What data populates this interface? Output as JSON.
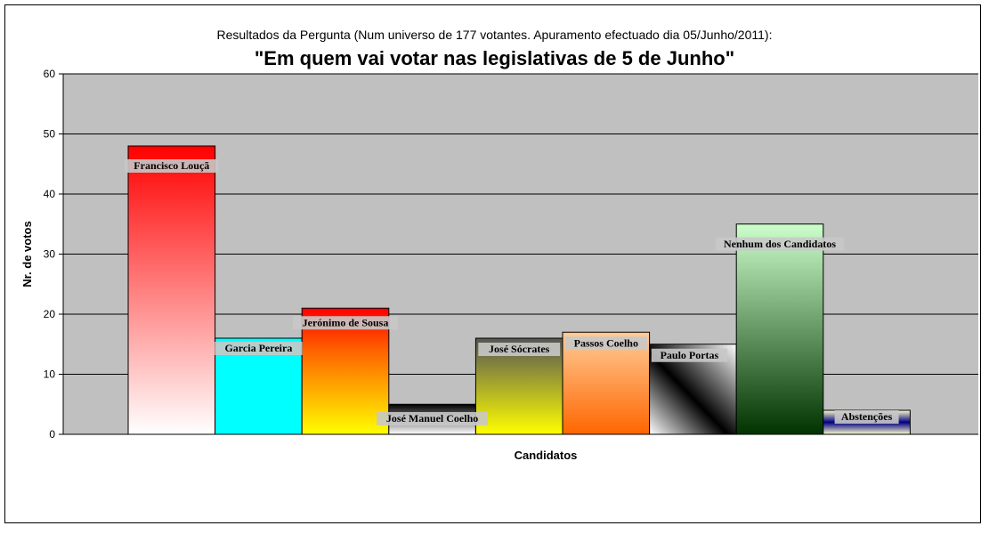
{
  "chart_data": {
    "type": "bar",
    "subtitle": "Resultados da Pergunta (Num universo de 177 votantes. Apuramento efectuado dia 05/Junho/2011):",
    "title": "\"Em quem vai votar nas legislativas de 5 de Junho\"",
    "xlabel": "Candidatos",
    "ylabel": "Nr. de votos",
    "ylim": [
      0,
      60
    ],
    "yticks": [
      0,
      10,
      20,
      30,
      40,
      50,
      60
    ],
    "grid": true,
    "categories": [
      "Francisco Louçã",
      "Garcia Pereira",
      "Jerónimo de Sousa",
      "José Manuel Coelho",
      "José Sócrates",
      "Passos Coelho",
      "Paulo Portas",
      "Nenhum dos Candidatos",
      "Abstenções"
    ],
    "values": [
      48,
      16,
      21,
      5,
      16,
      17,
      15,
      35,
      4
    ],
    "colors": [
      [
        "#ff0000",
        "#ffffff"
      ],
      [
        "#00ffff",
        "#00ffff"
      ],
      [
        "#ff0000",
        "#ffff00"
      ],
      [
        "#000000",
        "#ffffff"
      ],
      [
        "#555555",
        "#ffff00"
      ],
      [
        "#ffcc99",
        "#ff6600"
      ],
      [
        "#000000",
        "#ffffff"
      ],
      [
        "#ccffcc",
        "#003300"
      ],
      [
        "#ffff99",
        "#000080"
      ]
    ]
  }
}
